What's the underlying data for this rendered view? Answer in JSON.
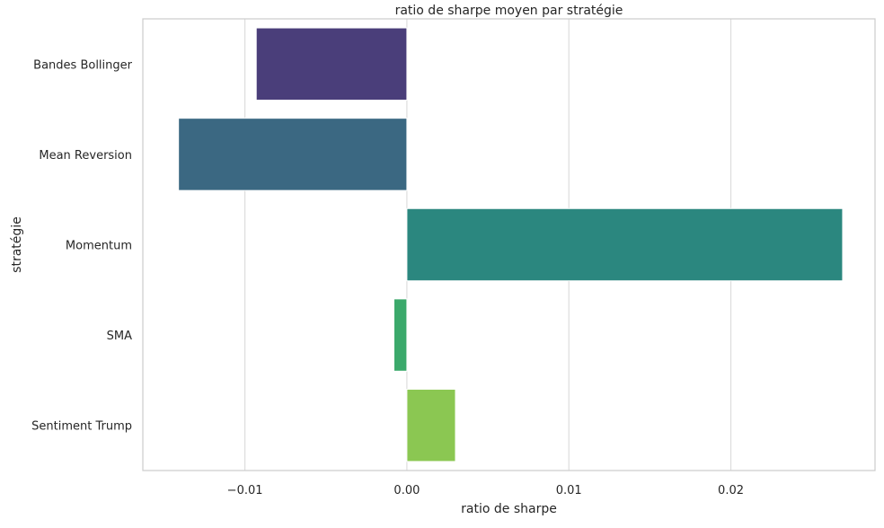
{
  "chart_data": {
    "type": "bar",
    "orientation": "horizontal",
    "title": "ratio de sharpe moyen par stratégie",
    "xlabel": "ratio de sharpe",
    "ylabel": "stratégie",
    "categories": [
      "Bandes Bollinger",
      "Mean Reversion",
      "Momentum",
      "SMA",
      "Sentiment Trump"
    ],
    "values": [
      -0.0093,
      -0.0141,
      0.0269,
      -0.0008,
      0.003
    ],
    "colors": [
      "#4a3e7a",
      "#3b6882",
      "#2b877f",
      "#3ba96b",
      "#8bc752"
    ],
    "xlim": [
      -0.0163,
      0.0289
    ],
    "xticks": [
      -0.01,
      0.0,
      0.01,
      0.02
    ],
    "xtick_labels": [
      "−0.01",
      "0.00",
      "0.01",
      "0.02"
    ],
    "grid": "vertical",
    "legend": "none"
  }
}
